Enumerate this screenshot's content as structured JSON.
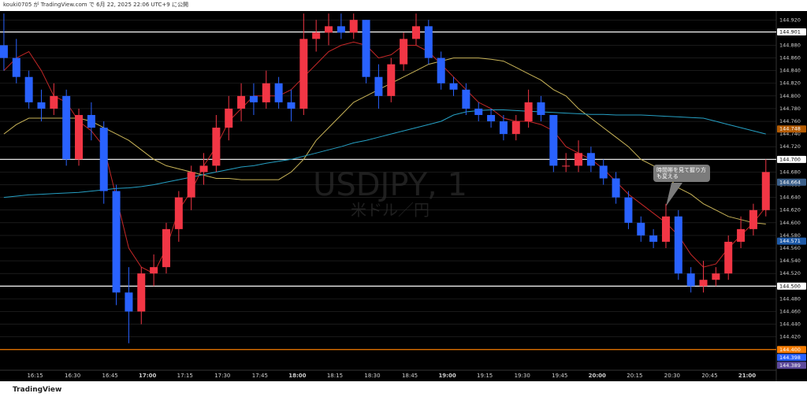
{
  "header": "kouki0705 が TradingView.com で 6月 22, 2025 22:06 UTC+9 に公開",
  "footer": "TradingView",
  "chart_data": {
    "type": "candlestick",
    "title": "USDJPY, 1",
    "subtitle": "米ドル／円",
    "annotation": "時間帯を見て握り方も変える",
    "categories": [
      null,
      null,
      null,
      "16:15",
      null,
      null,
      "16:30",
      null,
      null,
      "16:45",
      null,
      null,
      "17:00",
      null,
      null,
      "17:15",
      null,
      null,
      "17:30",
      null,
      null,
      "17:45",
      null,
      null,
      "18:00",
      null,
      null,
      "18:15",
      null,
      null,
      "18:30",
      null,
      null,
      "18:45",
      null,
      null,
      "19:00",
      null,
      null,
      "19:15",
      null,
      null,
      "19:30",
      null,
      null,
      "19:45",
      null,
      null,
      "20:00",
      null,
      null,
      "20:15",
      null,
      null,
      "20:30",
      null,
      null,
      "20:45",
      null,
      null,
      "21:00",
      null
    ],
    "open": [
      144.88,
      144.86,
      144.83,
      144.79,
      144.78,
      144.8,
      144.7,
      144.77,
      144.75,
      144.65,
      144.49,
      144.46,
      144.52,
      144.53,
      144.59,
      144.64,
      144.68,
      144.69,
      144.75,
      144.78,
      144.8,
      144.79,
      144.82,
      144.79,
      144.78,
      144.89,
      144.9,
      144.91,
      144.9,
      144.92,
      144.83,
      144.8,
      144.85,
      144.89,
      144.91,
      144.86,
      144.82,
      144.81,
      144.78,
      144.77,
      144.76,
      144.74,
      144.76,
      144.79,
      144.77,
      144.69,
      144.69,
      144.71,
      144.69,
      144.67,
      144.64,
      144.6,
      144.58,
      144.57,
      144.61,
      144.52,
      144.5,
      144.51,
      144.52,
      144.57,
      144.59,
      144.62
    ],
    "high": [
      144.93,
      144.89,
      144.84,
      144.81,
      144.82,
      144.81,
      144.78,
      144.79,
      144.76,
      144.66,
      144.53,
      144.53,
      144.55,
      144.6,
      144.65,
      144.69,
      144.71,
      144.77,
      144.8,
      144.82,
      144.82,
      144.84,
      144.83,
      144.81,
      144.93,
      144.92,
      144.93,
      144.93,
      144.93,
      144.92,
      144.85,
      144.86,
      144.9,
      144.93,
      144.92,
      144.87,
      144.83,
      144.82,
      144.79,
      144.78,
      144.77,
      144.77,
      144.81,
      144.8,
      144.77,
      144.71,
      144.73,
      144.72,
      144.7,
      144.68,
      144.65,
      144.61,
      144.59,
      144.63,
      144.62,
      144.53,
      144.54,
      144.53,
      144.58,
      144.61,
      144.63,
      144.7
    ],
    "low": [
      144.84,
      144.82,
      144.78,
      144.76,
      144.77,
      144.69,
      144.69,
      144.73,
      144.63,
      144.47,
      144.41,
      144.44,
      144.5,
      144.52,
      144.57,
      144.62,
      144.66,
      144.68,
      144.73,
      144.76,
      144.77,
      144.78,
      144.78,
      144.76,
      144.77,
      144.87,
      144.88,
      144.89,
      144.89,
      144.82,
      144.78,
      144.79,
      144.84,
      144.88,
      144.85,
      144.81,
      144.8,
      144.77,
      144.76,
      144.75,
      144.73,
      144.73,
      144.75,
      144.76,
      144.68,
      144.68,
      144.68,
      144.68,
      144.66,
      144.63,
      144.59,
      144.57,
      144.56,
      144.56,
      144.51,
      144.49,
      144.49,
      144.5,
      144.51,
      144.56,
      144.58,
      144.61
    ],
    "close": [
      144.86,
      144.83,
      144.79,
      144.78,
      144.8,
      144.7,
      144.77,
      144.75,
      144.65,
      144.49,
      144.46,
      144.52,
      144.53,
      144.59,
      144.64,
      144.68,
      144.69,
      144.75,
      144.78,
      144.8,
      144.79,
      144.82,
      144.79,
      144.78,
      144.89,
      144.9,
      144.91,
      144.9,
      144.92,
      144.83,
      144.8,
      144.85,
      144.89,
      144.91,
      144.86,
      144.82,
      144.81,
      144.78,
      144.77,
      144.76,
      144.74,
      144.76,
      144.79,
      144.77,
      144.69,
      144.69,
      144.71,
      144.69,
      144.67,
      144.64,
      144.6,
      144.58,
      144.57,
      144.61,
      144.52,
      144.5,
      144.51,
      144.52,
      144.57,
      144.59,
      144.62,
      144.68
    ],
    "up_color": "#f23645",
    "down_color": "#2962ff",
    "lines": [
      {
        "color": "#c62828",
        "values": [
          144.84,
          144.86,
          144.87,
          144.84,
          144.8,
          144.79,
          144.76,
          144.745,
          144.72,
          144.64,
          144.56,
          144.53,
          144.52,
          144.56,
          144.62,
          144.65,
          144.69,
          144.72,
          144.76,
          144.78,
          144.8,
          144.8,
          144.8,
          144.81,
          144.83,
          144.85,
          144.87,
          144.88,
          144.885,
          144.88,
          144.86,
          144.865,
          144.88,
          144.88,
          144.87,
          144.85,
          144.83,
          144.81,
          144.79,
          144.78,
          144.765,
          144.76,
          144.76,
          144.755,
          144.745,
          144.72,
          144.71,
          144.7,
          144.685,
          144.665,
          144.645,
          144.63,
          144.615,
          144.6,
          144.58,
          144.55,
          144.53,
          144.535,
          144.56,
          144.58,
          144.6,
          144.625
        ]
      },
      {
        "color": "#c9b458",
        "values": [
          144.74,
          144.755,
          144.765,
          144.765,
          144.765,
          144.765,
          144.765,
          144.76,
          144.75,
          144.74,
          144.73,
          144.715,
          144.7,
          144.69,
          144.685,
          144.68,
          144.675,
          144.67,
          144.67,
          144.668,
          144.668,
          144.668,
          144.668,
          144.68,
          144.7,
          144.73,
          144.75,
          144.77,
          144.79,
          144.8,
          144.81,
          144.82,
          144.83,
          144.84,
          144.85,
          144.855,
          144.86,
          144.86,
          144.86,
          144.858,
          144.855,
          144.845,
          144.835,
          144.825,
          144.81,
          144.8,
          144.78,
          144.765,
          144.75,
          144.735,
          144.72,
          144.7,
          144.69,
          144.675,
          144.655,
          144.645,
          144.63,
          144.62,
          144.61,
          144.605,
          144.6,
          144.598
        ]
      },
      {
        "color": "#26a0c4",
        "values": [
          144.64,
          144.642,
          144.644,
          144.645,
          144.646,
          144.647,
          144.648,
          144.65,
          144.652,
          144.654,
          144.655,
          144.657,
          144.66,
          144.664,
          144.668,
          144.672,
          144.676,
          144.68,
          144.684,
          144.688,
          144.69,
          144.694,
          144.697,
          144.7,
          144.705,
          144.71,
          144.715,
          144.72,
          144.726,
          144.73,
          144.735,
          144.74,
          144.745,
          144.75,
          144.755,
          144.76,
          144.77,
          144.775,
          144.777,
          144.778,
          144.778,
          144.777,
          144.776,
          144.775,
          144.774,
          144.773,
          144.772,
          144.771,
          144.771,
          144.77,
          144.77,
          144.77,
          144.769,
          144.768,
          144.767,
          144.766,
          144.765,
          144.76,
          144.755,
          144.75,
          144.745,
          144.74
        ]
      }
    ],
    "hlines": [
      {
        "value": 144.901,
        "color": "#ffffff"
      },
      {
        "value": 144.7,
        "label": "144.700",
        "color": "#ffffff"
      },
      {
        "value": 144.5,
        "label": "144.500",
        "color": "#ffffff"
      },
      {
        "value": 144.4,
        "label": "144.400",
        "color": "#f57c00"
      }
    ],
    "price_labels": [
      {
        "value": 144.748,
        "color": "#b35a00"
      },
      {
        "value": 144.664,
        "color": "#3b5f8a"
      },
      {
        "value": 144.571,
        "color": "#1e5aa8"
      },
      {
        "value": 144.398,
        "color": "#2962ff"
      },
      {
        "value": 144.389,
        "color": "#5e4a9c"
      }
    ],
    "ylim": [
      144.35,
      144.934
    ],
    "yticks": [
      {
        "value": 144.4,
        "label": "144.400"
      },
      {
        "value": 144.42,
        "label": "144.420"
      },
      {
        "value": 144.44,
        "label": "144.440"
      },
      {
        "value": 144.46,
        "label": "144.460"
      },
      {
        "value": 144.48,
        "label": "144.480"
      },
      {
        "value": 144.5,
        "label": "144.500"
      },
      {
        "value": 144.52,
        "label": "144.520"
      },
      {
        "value": 144.54,
        "label": "144.540"
      },
      {
        "value": 144.56,
        "label": "144.560"
      },
      {
        "value": 144.58,
        "label": "144.580"
      },
      {
        "value": 144.6,
        "label": "144.600"
      },
      {
        "value": 144.62,
        "label": "144.620"
      },
      {
        "value": 144.64,
        "label": "144.640"
      },
      {
        "value": 144.66,
        "label": "144.660"
      },
      {
        "value": 144.68,
        "label": "144.680"
      },
      {
        "value": 144.7,
        "label": "144.700"
      },
      {
        "value": 144.72,
        "label": "144.720"
      },
      {
        "value": 144.74,
        "label": "144.740"
      },
      {
        "value": 144.76,
        "label": "144.760"
      },
      {
        "value": 144.78,
        "label": "144.780"
      },
      {
        "value": 144.8,
        "label": "144.800"
      },
      {
        "value": 144.82,
        "label": "144.820"
      },
      {
        "value": 144.84,
        "label": "144.840"
      },
      {
        "value": 144.86,
        "label": "144.860"
      },
      {
        "value": 144.88,
        "label": "144.880"
      },
      {
        "value": 144.9,
        "label": "144.900"
      },
      {
        "value": 144.92,
        "label": "144.920"
      }
    ],
    "grid": true
  }
}
